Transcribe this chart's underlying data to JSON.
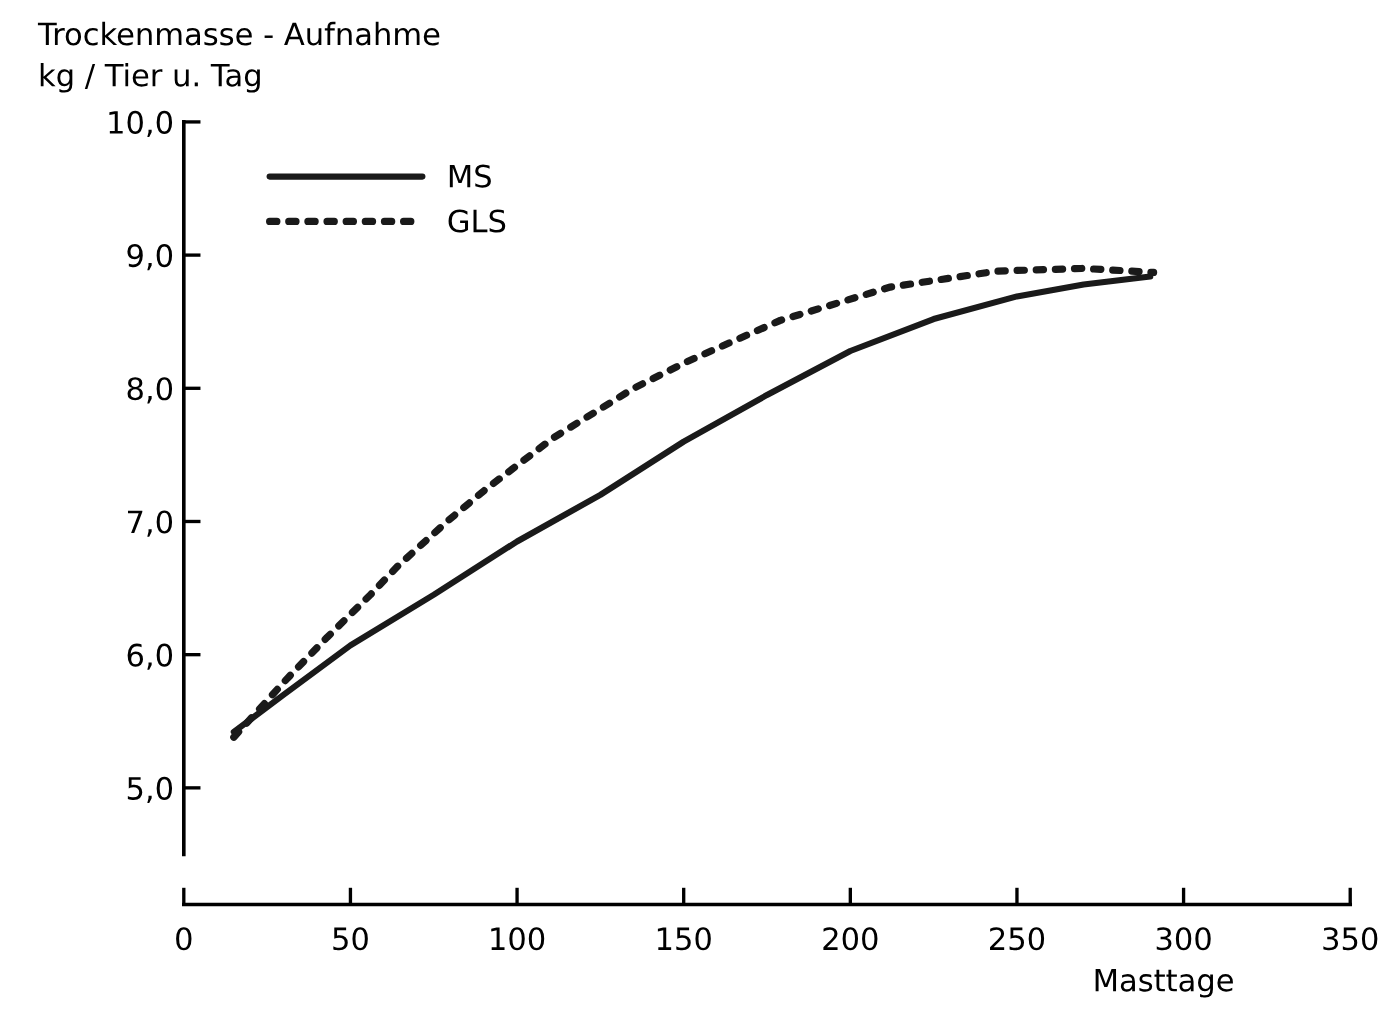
{
  "chart_data": {
    "type": "line",
    "ylabel": "Trockenmasse - Aufnahme\nkg / Tier u. Tag",
    "xlabel": "Masttage",
    "xlim": [
      0,
      350
    ],
    "xticks": [
      0,
      50,
      100,
      150,
      200,
      250,
      300,
      350
    ],
    "ylim": [
      4.5,
      10
    ],
    "yticks": [
      {
        "value": 5,
        "label": "5,0"
      },
      {
        "value": 6,
        "label": "6,0"
      },
      {
        "value": 7,
        "label": "7,0"
      },
      {
        "value": 8,
        "label": "8,0"
      },
      {
        "value": 9,
        "label": "9,0"
      },
      {
        "value": 10,
        "label": "10,0"
      }
    ],
    "grid": false,
    "legend": "top left",
    "series": [
      {
        "name": "MS",
        "color": "#1a1a1a",
        "line_style": "solid",
        "x": [
          15,
          30,
          50,
          75,
          100,
          125,
          150,
          175,
          200,
          225,
          250,
          270,
          290
        ],
        "values": [
          5.42,
          5.7,
          6.07,
          6.45,
          6.85,
          7.2,
          7.6,
          7.95,
          8.28,
          8.52,
          8.69,
          8.78,
          8.84
        ]
      },
      {
        "name": "GLS",
        "color": "#1a1a1a",
        "line_style": "dotted",
        "x": [
          15,
          31,
          43,
          56,
          64,
          79,
          91,
          111,
          135,
          151,
          179,
          212,
          244,
          270,
          291
        ],
        "values": [
          5.38,
          5.82,
          6.13,
          6.45,
          6.66,
          7.0,
          7.25,
          7.63,
          8.0,
          8.2,
          8.51,
          8.76,
          8.88,
          8.9,
          8.87
        ]
      }
    ]
  }
}
